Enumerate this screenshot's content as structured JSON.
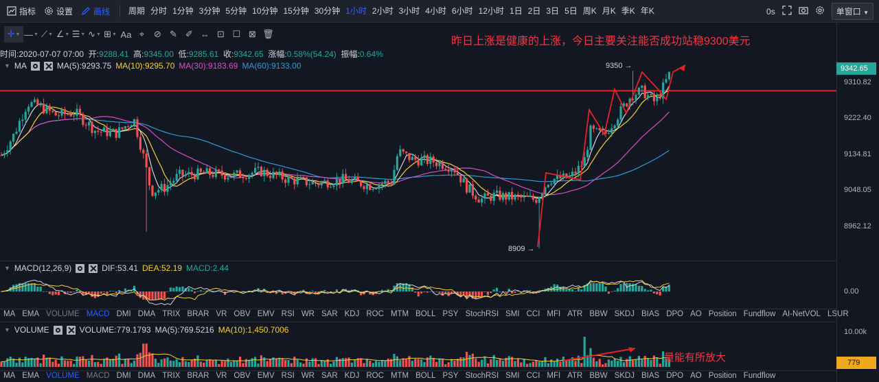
{
  "topbar": {
    "indicators_label": "指标",
    "settings_label": "设置",
    "draw_label": "画线",
    "period_label": "周期",
    "periods": [
      {
        "label": "分时",
        "active": false
      },
      {
        "label": "1分钟",
        "active": false
      },
      {
        "label": "3分钟",
        "active": false
      },
      {
        "label": "5分钟",
        "active": false
      },
      {
        "label": "10分钟",
        "active": false
      },
      {
        "label": "15分钟",
        "active": false
      },
      {
        "label": "30分钟",
        "active": false
      },
      {
        "label": "1小时",
        "active": true
      },
      {
        "label": "2小时",
        "active": false
      },
      {
        "label": "3小时",
        "active": false
      },
      {
        "label": "4小时",
        "active": false
      },
      {
        "label": "6小时",
        "active": false
      },
      {
        "label": "12小时",
        "active": false
      },
      {
        "label": "1日",
        "active": false
      },
      {
        "label": "2日",
        "active": false
      },
      {
        "label": "3日",
        "active": false
      },
      {
        "label": "5日",
        "active": false
      },
      {
        "label": "周K",
        "active": false
      },
      {
        "label": "月K",
        "active": false
      },
      {
        "label": "季K",
        "active": false
      },
      {
        "label": "年K",
        "active": false
      }
    ],
    "timer": "0s",
    "window_mode": "单窗口"
  },
  "annotations": {
    "main": "昨日上涨是健康的上涨，今日主要关注能否成功站稳9300美元",
    "volume": "量能有所放大",
    "high_marker": "9350",
    "low_marker": "8909"
  },
  "ohlc": {
    "time_label": "时间:",
    "time": "2020-07-07 07:00",
    "open_label": "开:",
    "open": "9288.41",
    "high_label": "高:",
    "high": "9345.00",
    "low_label": "低:",
    "low": "9285.61",
    "close_label": "收:",
    "close": "9342.65",
    "change_label": "涨幅:",
    "change": "0.58%(54.24)",
    "amp_label": "振幅:",
    "amp": "0.64%"
  },
  "ma_legend": {
    "name": "MA",
    "ma5": "MA(5):9293.75",
    "ma10": "MA(10):9295.70",
    "ma30": "MA(30):9183.69",
    "ma60": "MA(60):9133.00"
  },
  "macd_legend": {
    "name": "MACD(12,26,9)",
    "dif": "DIF:53.41",
    "dea": "DEA:52.19",
    "macd": "MACD:2.44"
  },
  "vol_legend": {
    "name": "VOLUME",
    "vol": "VOLUME:779.1793",
    "ma5": "MA(5):769.5216",
    "ma10": "MA(10):1,450.7006"
  },
  "main_indicator_tabs": [
    "MA",
    "EMA",
    "VOLUME",
    "MACD",
    "DMI",
    "DMA",
    "TRIX",
    "BRAR",
    "VR",
    "OBV",
    "EMV",
    "RSI",
    "WR",
    "SAR",
    "KDJ",
    "ROC",
    "MTM",
    "BOLL",
    "PSY",
    "StochRSI",
    "SMI",
    "CCI",
    "MFI",
    "ATR",
    "BBW",
    "SKDJ",
    "BIAS",
    "DPO",
    "AO",
    "Position",
    "Fundflow",
    "AI-NetVOL",
    "LSUR"
  ],
  "sub_indicator_tabs": [
    "MA",
    "EMA",
    "VOLUME",
    "MACD",
    "DMI",
    "DMA",
    "TRIX",
    "BRAR",
    "VR",
    "OBV",
    "EMV",
    "RSI",
    "WR",
    "SAR",
    "KDJ",
    "ROC",
    "MTM",
    "BOLL",
    "PSY",
    "StochRSI",
    "SMI",
    "CCI",
    "MFI",
    "ATR",
    "BBW",
    "SKDJ",
    "BIAS",
    "DPO",
    "AO",
    "Position",
    "Fundflow"
  ],
  "price_axis": {
    "labels": [
      "9310.82",
      "9222.40",
      "9134.81",
      "9048.05",
      "8962.12"
    ],
    "current": "9342.65",
    "macd_zero": "0.00",
    "vol_top": "10.00k",
    "vol_current": "779"
  },
  "colors": {
    "up": "#26a69a",
    "down": "#ef5350",
    "ma5": "#d1d4dc",
    "ma10": "#f5d033",
    "ma30": "#d64fc6",
    "ma60": "#2e9bd6",
    "annotation": "#f23645"
  }
}
